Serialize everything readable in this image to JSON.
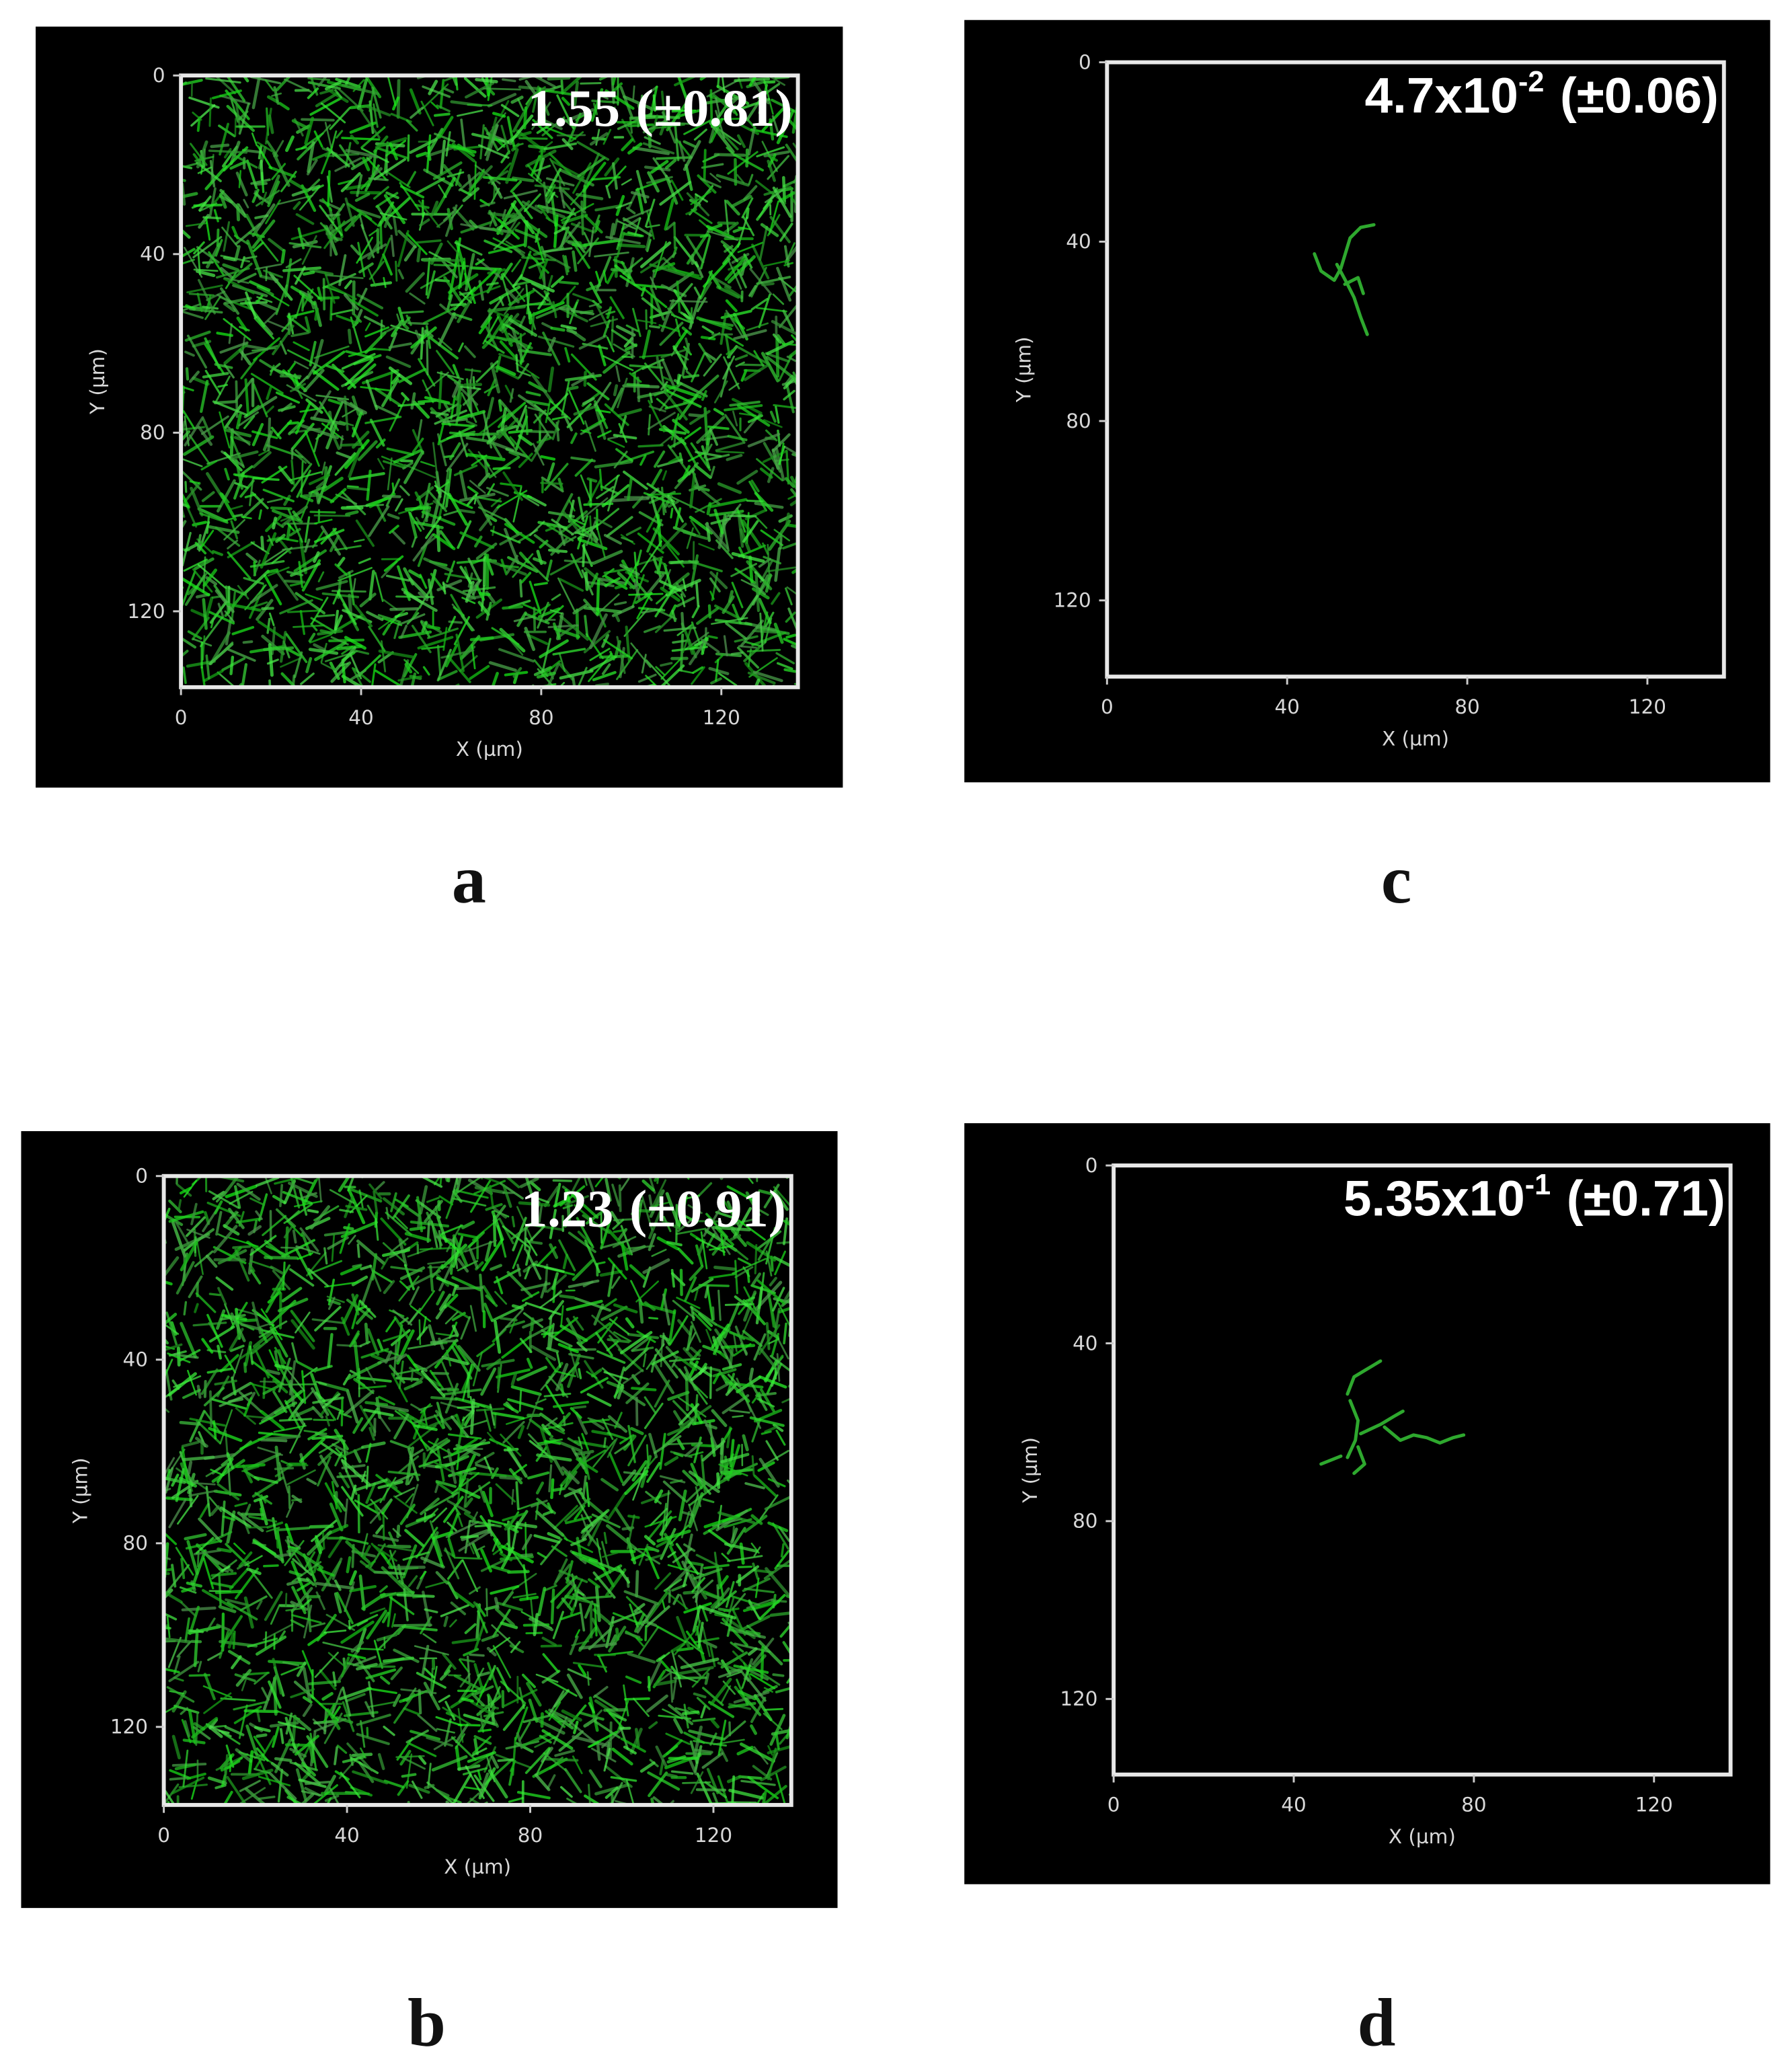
{
  "panels": [
    {
      "label": "a",
      "value": "1.55",
      "error": "(±0.81)",
      "x_label": "X (µm)",
      "y_label": "Y (µm)",
      "xlim": [
        0,
        137
      ],
      "ylim": [
        0,
        137
      ],
      "xticks": [
        0,
        40,
        80,
        120
      ],
      "yticks": [
        0,
        40,
        80,
        120
      ]
    },
    {
      "label": "c",
      "value": "4.7x10",
      "exponent": "-2",
      "error": "(±0.06)",
      "x_label": "X (µm)",
      "y_label": "Y (µm)",
      "xlim": [
        0,
        137
      ],
      "ylim": [
        0,
        137
      ],
      "xticks": [
        0,
        40,
        80,
        120
      ],
      "yticks": [
        0,
        40,
        80,
        120
      ]
    },
    {
      "label": "b",
      "value": "1.23",
      "error": "(±0.91)",
      "x_label": "X (µm)",
      "y_label": "Y (µm)",
      "xlim": [
        0,
        137
      ],
      "ylim": [
        0,
        137
      ],
      "xticks": [
        0,
        40,
        80,
        120
      ],
      "yticks": [
        0,
        40,
        80,
        120
      ]
    },
    {
      "label": "d",
      "value": "5.35x10",
      "exponent": "-1",
      "error": "(±0.71)",
      "x_label": "X (µm)",
      "y_label": "Y (µm)",
      "xlim": [
        0,
        137
      ],
      "ylim": [
        0,
        137
      ],
      "xticks": [
        0,
        40,
        80,
        120
      ],
      "yticks": [
        0,
        40,
        80,
        120
      ]
    }
  ]
}
